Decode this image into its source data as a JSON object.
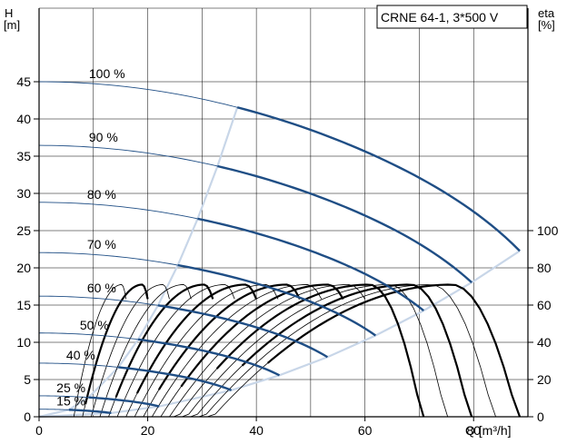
{
  "chart_data": {
    "type": "line",
    "title": "CRNE 64-1, 3*500 V",
    "left_axis_label": [
      "H",
      "[m]"
    ],
    "right_axis_label": [
      "eta",
      "[%]"
    ],
    "x_label": "Q [m³/h]",
    "x_range": [
      0,
      90
    ],
    "y_range": [
      0,
      50
    ],
    "eta_range": [
      0,
      100
    ],
    "x_ticks": [
      "0",
      "20",
      "40",
      "60",
      "80"
    ],
    "y_ticks": [
      "0",
      "5",
      "10",
      "15",
      "20",
      "25",
      "30",
      "35",
      "40",
      "45"
    ],
    "eta_ticks": [
      "0",
      "20",
      "40",
      "60",
      "80",
      "100"
    ],
    "grid": true,
    "colors": {
      "head_curve": "#1f4e85",
      "envelope": "#c8d6e8",
      "efficiency_curve": "#000000"
    },
    "speed_curves": [
      {
        "label": "100 %",
        "shutoff_head": 45.0,
        "allowed_start_q": 36.5,
        "max_q": 88.5
      },
      {
        "label": "90 %",
        "shutoff_head": 36.45,
        "allowed_start_q": 32.85,
        "max_q": 79.65
      },
      {
        "label": "80 %",
        "shutoff_head": 28.8,
        "allowed_start_q": 29.2,
        "max_q": 70.8
      },
      {
        "label": "70 %",
        "shutoff_head": 22.05,
        "allowed_start_q": 25.55,
        "max_q": 61.95
      },
      {
        "label": "60 %",
        "shutoff_head": 16.2,
        "allowed_start_q": 21.9,
        "max_q": 53.1
      },
      {
        "label": "50 %",
        "shutoff_head": 11.25,
        "allowed_start_q": 18.25,
        "max_q": 44.25
      },
      {
        "label": "40 %",
        "shutoff_head": 7.2,
        "allowed_start_q": 14.6,
        "max_q": 35.4
      },
      {
        "label": "25 %",
        "shutoff_head": 2.81,
        "allowed_start_q": 9.13,
        "max_q": 22.13
      },
      {
        "label": "15 %",
        "shutoff_head": 1.01,
        "allowed_start_q": 5.48,
        "max_q": 13.28
      }
    ],
    "efficiency_curves": {
      "speeds": [
        100,
        95,
        90,
        85,
        80,
        75,
        70,
        65,
        60,
        55,
        50,
        45,
        40,
        35,
        30,
        25,
        20
      ],
      "peak_eta": 71,
      "heavy_speeds": [
        100,
        90,
        80,
        70,
        60,
        50,
        40,
        25
      ]
    }
  }
}
